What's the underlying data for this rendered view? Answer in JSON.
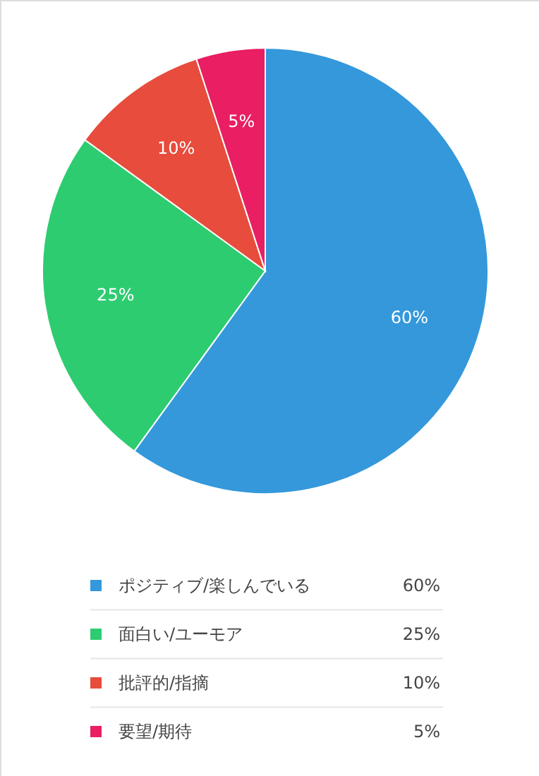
{
  "chart_data": {
    "type": "pie",
    "categories": [
      "ポジティブ/楽しんでいる",
      "面白い/ユーモア",
      "批評的/指摘",
      "要望/期待"
    ],
    "values": [
      60,
      25,
      10,
      5
    ],
    "colors": [
      "#3498db",
      "#2ecc71",
      "#e74c3c",
      "#e91e63"
    ],
    "value_labels": [
      "60%",
      "25%",
      "10%",
      "5%"
    ],
    "legend": "bottom"
  }
}
